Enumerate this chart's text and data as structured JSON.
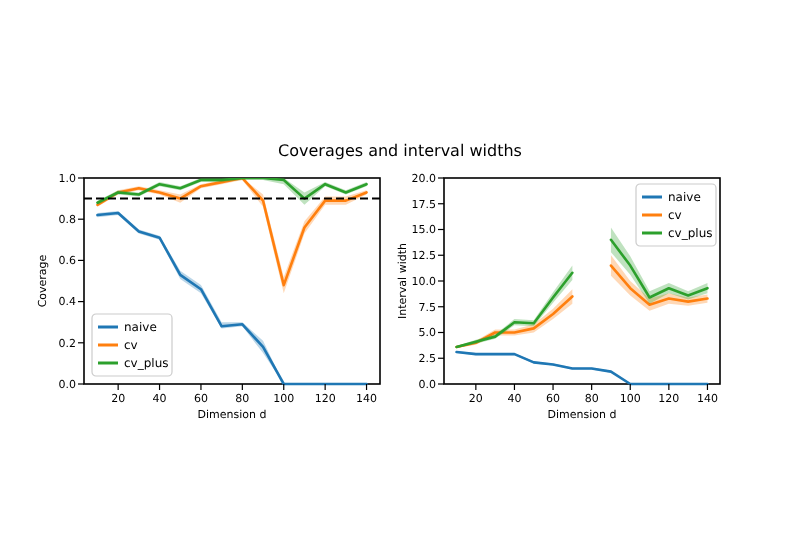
{
  "chart_data": [
    {
      "type": "line",
      "title": "Coverages and interval widths",
      "xlabel": "Dimension d",
      "ylabel": "Coverage",
      "x": [
        10,
        20,
        30,
        40,
        50,
        60,
        70,
        80,
        90,
        100,
        110,
        120,
        130,
        140
      ],
      "xlim": [
        3.5,
        146.5
      ],
      "xticks": [
        20,
        40,
        60,
        80,
        100,
        120,
        140
      ],
      "ylim": [
        0,
        1
      ],
      "yticks": [
        {
          "value": 0,
          "label": "0.0"
        },
        {
          "value": 0.2,
          "label": "0.2"
        },
        {
          "value": 0.4,
          "label": "0.4"
        },
        {
          "value": 0.6,
          "label": "0.6"
        },
        {
          "value": 0.8,
          "label": "0.8"
        },
        {
          "value": 1,
          "label": "1.0"
        }
      ],
      "legend": "bottom left",
      "line_style": "solid",
      "ref_lines": [
        {
          "axis": "y",
          "value": 0.9,
          "color": "#000000",
          "line_style": "dashed"
        }
      ],
      "series": [
        {
          "name": "naive",
          "color": "#1f77b4",
          "values": [
            0.82,
            0.83,
            0.74,
            0.71,
            0.53,
            0.46,
            0.28,
            0.29,
            0.18,
            0,
            0,
            0,
            0,
            0
          ],
          "lower": [
            0.81,
            0.82,
            0.73,
            0.7,
            0.51,
            0.44,
            0.27,
            0.28,
            0.15,
            0,
            0,
            0,
            0,
            0
          ],
          "upper": [
            0.83,
            0.84,
            0.75,
            0.72,
            0.55,
            0.48,
            0.3,
            0.3,
            0.21,
            0,
            0,
            0,
            0,
            0
          ]
        },
        {
          "name": "cv",
          "color": "#ff7f0e",
          "values": [
            0.87,
            0.93,
            0.95,
            0.93,
            0.9,
            0.96,
            0.98,
            1,
            0.89,
            0.48,
            0.76,
            0.89,
            0.89,
            0.93
          ],
          "lower": [
            0.86,
            0.92,
            0.94,
            0.92,
            0.88,
            0.95,
            0.97,
            0.99,
            0.86,
            0.44,
            0.73,
            0.87,
            0.87,
            0.92
          ],
          "upper": [
            0.88,
            0.94,
            0.96,
            0.94,
            0.92,
            0.97,
            0.99,
            1,
            0.92,
            0.52,
            0.79,
            0.91,
            0.91,
            0.94
          ]
        },
        {
          "name": "cv_plus",
          "color": "#2ca02c",
          "values": [
            0.88,
            0.93,
            0.92,
            0.97,
            0.95,
            0.99,
            0.99,
            1,
            1,
            0.99,
            0.9,
            0.97,
            0.93,
            0.97
          ],
          "lower": [
            0.87,
            0.92,
            0.91,
            0.96,
            0.94,
            0.98,
            0.98,
            0.99,
            0.99,
            0.97,
            0.87,
            0.96,
            0.92,
            0.96
          ],
          "upper": [
            0.89,
            0.94,
            0.93,
            0.98,
            0.96,
            1,
            1,
            1,
            1,
            1,
            0.93,
            0.98,
            0.94,
            0.98
          ]
        }
      ]
    },
    {
      "type": "line",
      "xlabel": "Dimension d",
      "ylabel": "Interval width",
      "x": [
        10,
        20,
        30,
        40,
        50,
        60,
        70,
        80,
        90,
        100,
        110,
        120,
        130,
        140
      ],
      "xlim": [
        3.5,
        146.5
      ],
      "xticks": [
        20,
        40,
        60,
        80,
        100,
        120,
        140
      ],
      "ylim": [
        0,
        20
      ],
      "yticks": [
        {
          "value": 0,
          "label": "0.0"
        },
        {
          "value": 2.5,
          "label": "2.5"
        },
        {
          "value": 5,
          "label": "5.0"
        },
        {
          "value": 7.5,
          "label": "7.5"
        },
        {
          "value": 10,
          "label": "10.0"
        },
        {
          "value": 12.5,
          "label": "12.5"
        },
        {
          "value": 15,
          "label": "15.0"
        },
        {
          "value": 17.5,
          "label": "17.5"
        },
        {
          "value": 20,
          "label": "20.0"
        }
      ],
      "legend": "top right",
      "line_style": "solid",
      "series": [
        {
          "name": "naive",
          "color": "#1f77b4",
          "values": [
            3.1,
            2.9,
            2.9,
            2.9,
            2.1,
            1.9,
            1.5,
            1.5,
            1.2,
            0,
            0,
            0,
            0,
            0
          ],
          "lower": [
            3,
            2.8,
            2.8,
            2.8,
            2,
            1.8,
            1.4,
            1.4,
            1.1,
            0,
            0,
            0,
            0,
            0
          ],
          "upper": [
            3.2,
            3,
            3,
            3,
            2.2,
            2,
            1.6,
            1.6,
            1.3,
            0,
            0,
            0,
            0,
            0
          ]
        },
        {
          "name": "cv",
          "color": "#ff7f0e",
          "values": [
            3.6,
            4,
            5,
            5,
            5.4,
            6.8,
            8.5,
            null,
            11.5,
            9.3,
            7.7,
            8.3,
            8,
            8.3
          ],
          "lower": [
            3.5,
            3.8,
            4.7,
            4.7,
            5,
            6.3,
            7.8,
            null,
            10.5,
            8.6,
            7.1,
            7.8,
            7.6,
            7.9
          ],
          "upper": [
            3.7,
            4.2,
            5.3,
            5.3,
            5.8,
            7.3,
            9.2,
            null,
            12.5,
            10,
            8.3,
            8.8,
            8.4,
            8.7
          ]
        },
        {
          "name": "cv_plus",
          "color": "#2ca02c",
          "values": [
            3.6,
            4.1,
            4.6,
            6,
            5.9,
            8.4,
            10.8,
            null,
            14,
            11.5,
            8.4,
            9.3,
            8.6,
            9.3
          ],
          "lower": [
            3.5,
            3.9,
            4.4,
            5.7,
            5.6,
            7.9,
            10.1,
            null,
            12.8,
            10.6,
            7.8,
            8.8,
            8.2,
            8.8
          ],
          "upper": [
            3.7,
            4.3,
            4.8,
            6.3,
            6.2,
            8.9,
            11.5,
            null,
            15.2,
            12.4,
            9,
            9.8,
            9,
            9.8
          ]
        }
      ]
    }
  ]
}
